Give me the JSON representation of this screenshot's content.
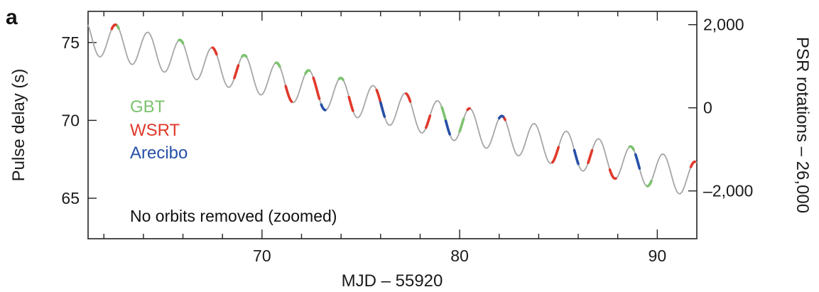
{
  "panel_label": "a",
  "colors": {
    "curve": "#a6a6a6",
    "GBT": "#7cc36e",
    "WSRT": "#e0392b",
    "Arecibo": "#2650a8"
  },
  "chart_data": {
    "type": "line",
    "title": "",
    "xlabel": "MJD – 55920",
    "ylabel": "Pulse delay (s)",
    "y2label": "PSR rotations – 26,000",
    "xlim": [
      61.2,
      92.0
    ],
    "ylim": [
      62.4,
      77.0
    ],
    "y2lim": [
      -3150,
      2320
    ],
    "xticks_major": [
      70,
      80,
      90
    ],
    "xticks_minor": [
      62,
      64,
      66,
      68,
      72,
      74,
      76,
      78,
      82,
      84,
      86,
      88
    ],
    "yticks_major": [
      65,
      70,
      75
    ],
    "y2ticks_major": [
      2000,
      0,
      -2000
    ],
    "y2tick_labels": [
      "2,000",
      "0",
      "–2,000"
    ],
    "xtick_labels": [
      "70",
      "80",
      "90"
    ],
    "ytick_labels": [
      "65",
      "70",
      "75"
    ],
    "legend": [
      "GBT",
      "WSRT",
      "Arecibo"
    ],
    "legend_placement": "left",
    "annotation": "No orbits removed (zoomed)",
    "model": {
      "description_of_curve": "sinusoidal orbital delay with downward drift",
      "period_days": 1.629,
      "amplitude_s": 1.15,
      "trend_intercept_s": 75.2,
      "trend_slope_s_per_day": -0.3,
      "trend_x0": 61.9,
      "phase_peak_x": 62.6
    },
    "series": [
      {
        "name": "model",
        "x": [],
        "y": []
      },
      {
        "name": "GBT",
        "x_ranges": [
          [
            62.55,
            62.75
          ],
          [
            65.8,
            66.0
          ],
          [
            69.0,
            69.2
          ],
          [
            70.7,
            70.9
          ],
          [
            72.2,
            72.4
          ],
          [
            73.9,
            74.1
          ],
          [
            79.1,
            79.3
          ],
          [
            80.0,
            80.2
          ],
          [
            88.6,
            88.8
          ],
          [
            89.5,
            89.7
          ]
        ]
      },
      {
        "name": "WSRT",
        "x_ranges": [
          [
            62.4,
            62.6
          ],
          [
            67.5,
            67.7
          ],
          [
            68.6,
            68.8
          ],
          [
            71.2,
            71.5
          ],
          [
            72.6,
            72.9
          ],
          [
            74.4,
            74.6
          ],
          [
            75.8,
            76.1
          ],
          [
            77.3,
            77.5
          ],
          [
            78.3,
            78.5
          ],
          [
            80.4,
            80.5
          ],
          [
            82.1,
            82.3
          ],
          [
            84.7,
            85.0
          ],
          [
            86.5,
            86.7
          ],
          [
            87.6,
            87.9
          ],
          [
            91.7,
            91.9
          ]
        ]
      },
      {
        "name": "Arecibo",
        "x_ranges": [
          [
            73.0,
            73.2
          ],
          [
            76.0,
            76.2
          ],
          [
            79.3,
            79.5
          ],
          [
            82.0,
            82.2
          ],
          [
            85.8,
            86.0
          ],
          [
            88.9,
            89.1
          ]
        ]
      }
    ]
  }
}
